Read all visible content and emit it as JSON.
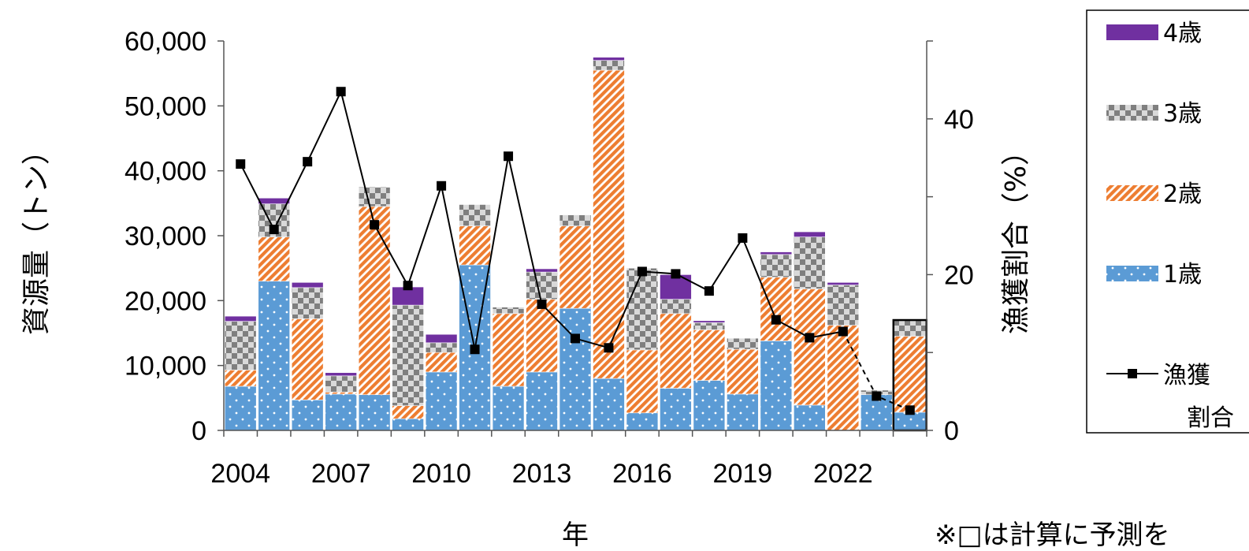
{
  "chart_data": {
    "type": "bar",
    "stacked": true,
    "xlabel": "年",
    "ylabel": "資源量（トン）",
    "y2label": "漁獲割合（%）",
    "categories": [
      "2004",
      "2005",
      "2006",
      "2007",
      "2008",
      "2009",
      "2010",
      "2011",
      "2012",
      "2013",
      "2014",
      "2015",
      "2016",
      "2017",
      "2018",
      "2019",
      "2020",
      "2021",
      "2022",
      "2023",
      "2024"
    ],
    "x_tick_labels": [
      "2004",
      "2007",
      "2010",
      "2013",
      "2016",
      "2019",
      "2022"
    ],
    "ylim": [
      0,
      60000
    ],
    "y_ticks": [
      "0",
      "10,000",
      "20,000",
      "30,000",
      "40,000",
      "50,000",
      "60,000"
    ],
    "y2lim": [
      0,
      50
    ],
    "y2_ticks": [
      "0",
      "20",
      "40"
    ],
    "series": [
      {
        "name": "1歳",
        "color": "#5b9bd5",
        "pattern": "dots",
        "values": [
          6800,
          23000,
          4700,
          5600,
          5500,
          1800,
          9000,
          25500,
          6800,
          9000,
          18800,
          8000,
          2700,
          6500,
          7700,
          5600,
          13800,
          3900,
          0,
          5500,
          2800
        ]
      },
      {
        "name": "2歳",
        "color": "#ed7d31",
        "pattern": "diagonal",
        "values": [
          2500,
          6800,
          12500,
          300,
          29000,
          2000,
          3000,
          6000,
          11200,
          11200,
          12700,
          47500,
          9700,
          11500,
          7800,
          6900,
          9800,
          17900,
          16200,
          0,
          11700
        ]
      },
      {
        "name": "3歳",
        "color": "#7f7f7f",
        "pattern": "checker",
        "values": [
          7500,
          5100,
          4800,
          2500,
          3000,
          15500,
          1500,
          3300,
          1000,
          4200,
          1700,
          1500,
          12600,
          2200,
          1100,
          1700,
          3500,
          8000,
          6200,
          700,
          2500
        ]
      },
      {
        "name": "4歳",
        "color": "#7030a0",
        "pattern": "solid",
        "values": [
          800,
          900,
          800,
          500,
          0,
          2800,
          1300,
          0,
          0,
          500,
          0,
          500,
          0,
          3800,
          300,
          0,
          400,
          800,
          400,
          0,
          0
        ]
      }
    ],
    "line_series": {
      "name": "漁獲割合",
      "legend_label_line1": "漁獲",
      "legend_label_line2": "割合",
      "axis": "y2",
      "values": [
        34.2,
        25.8,
        34.5,
        43.5,
        26.4,
        18.6,
        31.4,
        10.4,
        35.2,
        16.2,
        11.8,
        10.6,
        20.4,
        20.1,
        17.9,
        24.7,
        14.2,
        11.9,
        12.7,
        4.4,
        2.6
      ],
      "dashed_from_index": 19
    },
    "highlight_box_category": "2024",
    "footnote": "※□は計算に予測を",
    "legend_position": "right",
    "grid": false
  }
}
